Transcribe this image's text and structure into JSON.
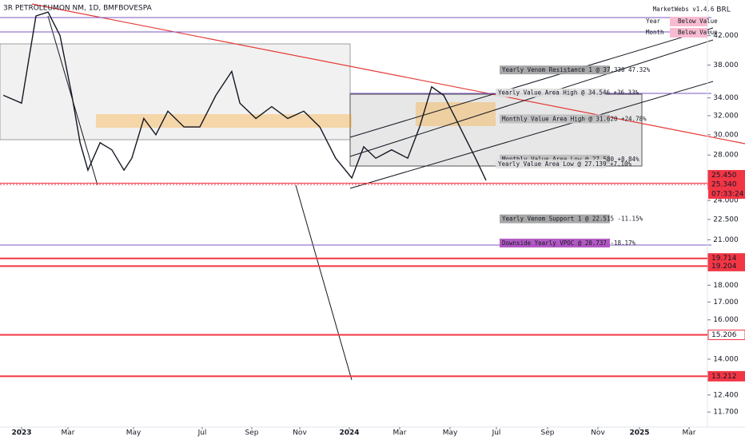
{
  "chart_data": {
    "type": "line",
    "title": "3R PETROLEUMON NM, 1D, BMFBOVESPA",
    "currency": "BRL",
    "log_scale": true,
    "color": "#131722",
    "x": [
      -0.76,
      0,
      0.62,
      1.14,
      1.66,
      2.12,
      2.37,
      2.61,
      2.98,
      3.34,
      3.71,
      3.95,
      4.3,
      4.65,
      5.0,
      5.47,
      5.93,
      6.55,
      7.19,
      7.52,
      8.17,
      8.83,
      9.5,
      10.16,
      10.81,
      11.45,
      12.1,
      12.57,
      13.05,
      13.68,
      14.32,
      14.79,
      15.27,
      15.75,
      16.24,
      16.59,
      17.1,
      17.55
    ],
    "values": [
      34.3,
      33.4,
      44.9,
      45.5,
      42.0,
      34.3,
      29.2,
      26.6,
      29.2,
      28.5,
      26.6,
      27.7,
      31.7,
      30.0,
      32.5,
      30.8,
      30.8,
      34.3,
      37.2,
      33.4,
      31.7,
      33.0,
      31.7,
      32.5,
      30.8,
      27.7,
      25.9,
      28.8,
      27.7,
      28.5,
      27.7,
      30.8,
      35.3,
      34.3,
      31.7,
      30.0,
      27.7,
      25.7
    ],
    "xlim": [
      -0.9,
      26.7
    ],
    "xticks": [
      {
        "value": 0,
        "label": "2023"
      },
      {
        "value": 2,
        "label": "Mar"
      },
      {
        "value": 4,
        "label": "May"
      },
      {
        "value": 6,
        "label": "Jul"
      },
      {
        "value": 8,
        "label": "Sep"
      },
      {
        "value": 10,
        "label": "Nov"
      },
      {
        "value": 12,
        "label": "2024"
      },
      {
        "value": 14,
        "label": "Mar"
      },
      {
        "value": 16,
        "label": "May"
      },
      {
        "value": 18,
        "label": "Jul"
      },
      {
        "value": 20,
        "label": "Sep"
      },
      {
        "value": 22,
        "label": "Nov"
      },
      {
        "value": 24,
        "label": "2025"
      },
      {
        "value": 26,
        "label": "Mar"
      }
    ],
    "ylim": [
      11.12,
      47.4
    ],
    "yticks": [
      {
        "value": 42,
        "label": "42.000"
      },
      {
        "value": 38,
        "label": "38.000"
      },
      {
        "value": 34,
        "label": "34.000"
      },
      {
        "value": 32,
        "label": "32.000"
      },
      {
        "value": 30,
        "label": "30.000"
      },
      {
        "value": 28,
        "label": "28.000"
      },
      {
        "value": 24,
        "label": "24.000"
      },
      {
        "value": 22.5,
        "label": "22.500"
      },
      {
        "value": 21,
        "label": "21.000"
      },
      {
        "value": 18,
        "label": "18.000"
      },
      {
        "value": 17,
        "label": "17.000"
      },
      {
        "value": 16,
        "label": "16.000"
      },
      {
        "value": 14,
        "label": "14.000"
      },
      {
        "value": 12.4,
        "label": "12.400"
      },
      {
        "value": 11.7,
        "label": "11.700"
      }
    ],
    "price_labels": [
      {
        "value": 25.45,
        "label": "25.450"
      },
      {
        "value": 25.34,
        "label": "25.340"
      },
      {
        "value": 19.714,
        "label": "19.714"
      },
      {
        "value": 19.204,
        "label": "19.204"
      },
      {
        "value": 15.206,
        "label": "15.206"
      },
      {
        "value": 13.212,
        "label": "13.212"
      }
    ],
    "countdown": "07:33:24",
    "annotations": [
      {
        "text": "Yearly Venom Resistance 1 @ 37.330  47.32%",
        "value": 37.33,
        "color": "#9e9e9e"
      },
      {
        "text": "Yearly Value Area High @ 34.546  +36.33%",
        "value": 34.546,
        "color": "#e0e0e0"
      },
      {
        "text": "Monthly Value Area High @ 31.620  +24.78%",
        "value": 31.62,
        "color": "#bdbdbd"
      },
      {
        "text": "Monthly Value Area Low @ 27.580  +8.84%",
        "value": 27.58,
        "color": "#bdbdbd"
      },
      {
        "text": "Yearly Value Area Low @ 27.139  +7.10%",
        "value": 27.139,
        "color": "#e0e0e0"
      },
      {
        "text": "Yearly Venom Support 1 @ 22.515  -11.15%",
        "value": 22.515,
        "color": "#9e9e9e"
      },
      {
        "text": "Downside Yearly VPOC @ 20.737  -18.17%",
        "value": 20.737,
        "color": "#ab47bc"
      }
    ],
    "table": {
      "title": "MarketWebs v1.4.6",
      "rows": [
        [
          "Year",
          "Below Value"
        ],
        [
          "Month",
          "Below Value"
        ]
      ]
    }
  }
}
